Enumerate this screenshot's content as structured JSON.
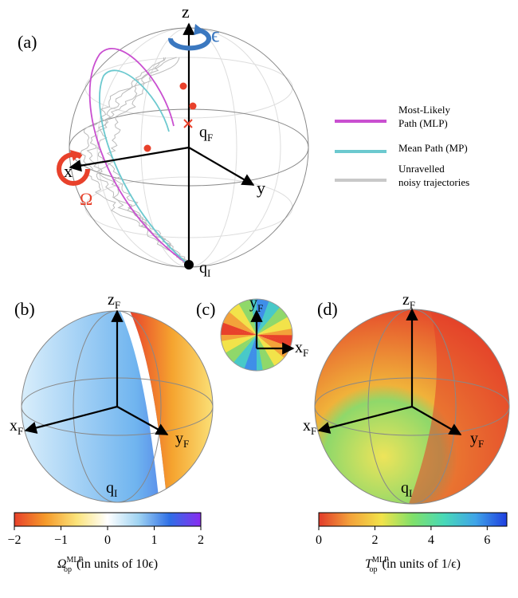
{
  "panel_a": {
    "label": "(a)",
    "axis_z": "z",
    "axis_x": "x",
    "axis_y": "y",
    "epsilon": "ϵ",
    "omega": "Ω",
    "final": {
      "base": "q",
      "sub": "F"
    },
    "initial": {
      "base": "q",
      "sub": "I"
    },
    "legend": [
      {
        "lines": [
          "Most-Likely",
          "Path (MLP)"
        ],
        "color": "#c94fd0"
      },
      {
        "lines": [
          "Mean Path (MP)"
        ],
        "color": "#6cc9cf"
      },
      {
        "lines": [
          "Unravelled",
          "noisy trajectories"
        ],
        "color": "#c8c8c8"
      }
    ]
  },
  "panel_b": {
    "label": "(b)",
    "z": {
      "base": "z",
      "sub": "F"
    },
    "x": {
      "base": "x",
      "sub": "F"
    },
    "y": {
      "base": "y",
      "sub": "F"
    },
    "q": {
      "base": "q",
      "sub": "I"
    },
    "colorbar": {
      "range": [
        -2,
        2
      ],
      "ticks": [
        {
          "value": -2,
          "label": "−2"
        },
        {
          "value": -1,
          "label": "−1"
        },
        0,
        1,
        2
      ],
      "colors": [
        "#e8412b",
        "#f59a2a",
        "#fbe37a",
        "#ffffff",
        "#9fd3f2",
        "#2f6fe6",
        "#8a2cf0"
      ],
      "title": {
        "symbol": "Ω",
        "sub": "op",
        "sup": "MLP",
        "text": "(in units of 10ϵ)"
      }
    }
  },
  "panel_c": {
    "label": "(c)",
    "y": {
      "base": "y",
      "sub": "F"
    },
    "x": {
      "base": "x",
      "sub": "F"
    }
  },
  "panel_d": {
    "label": "(d)",
    "z": {
      "base": "z",
      "sub": "F"
    },
    "x": {
      "base": "x",
      "sub": "F"
    },
    "y": {
      "base": "y",
      "sub": "F"
    },
    "q": {
      "base": "q",
      "sub": "I"
    },
    "colorbar": {
      "range": [
        0,
        6.7
      ],
      "ticks": [
        0,
        2,
        4,
        6
      ],
      "colors": [
        "#e23b2a",
        "#f3a23a",
        "#f2e34a",
        "#7fe06a",
        "#48d9b8",
        "#3fa4e8",
        "#1f3fe0"
      ],
      "title": {
        "symbol": "T",
        "sub": "op",
        "sup": "MLP",
        "text": "(in units of 1/ϵ)"
      }
    }
  }
}
